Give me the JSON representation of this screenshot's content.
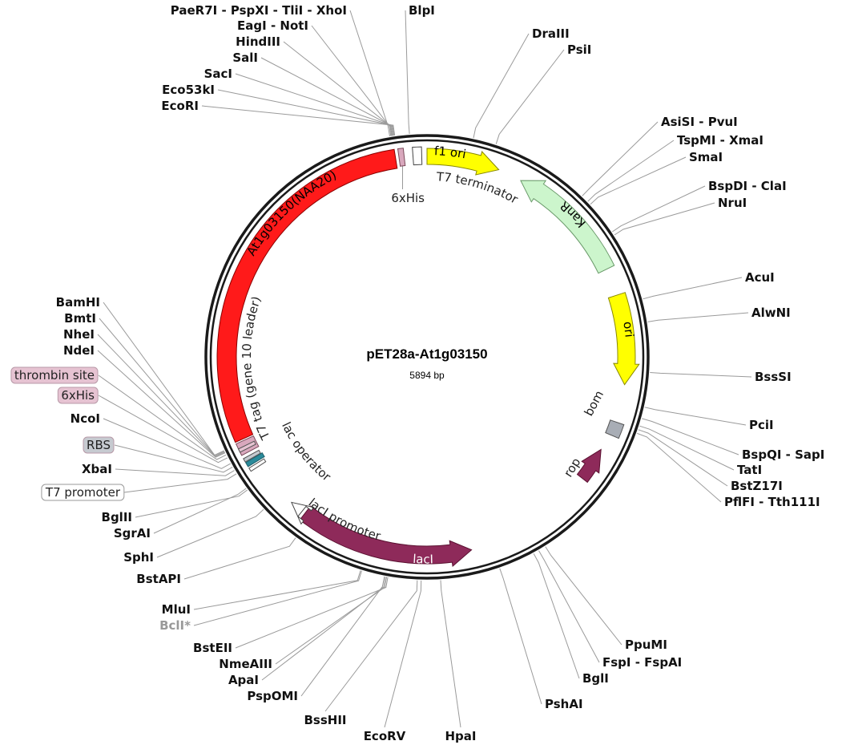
{
  "map": {
    "title": "pET28a-At1g03150",
    "length": "5894 bp"
  },
  "features": [
    {
      "id": "insert",
      "label": "At1g03150(NAA20)",
      "color": "#ff1a1a"
    },
    {
      "id": "his_top",
      "label": "6xHis",
      "color": "#d9a8bd"
    },
    {
      "id": "t7term",
      "label": "T7 terminator",
      "color": "#ffffff"
    },
    {
      "id": "f1ori",
      "label": "f1 ori",
      "color": "#ffff00"
    },
    {
      "id": "kanr",
      "label": "KanR",
      "color": "#ccf5cc"
    },
    {
      "id": "ori",
      "label": "ori",
      "color": "#ffff00"
    },
    {
      "id": "bom",
      "label": "bom",
      "color": "#a8adb5"
    },
    {
      "id": "rop",
      "label": "rop",
      "color": "#8e2a5a"
    },
    {
      "id": "laci",
      "label": "lacI",
      "color": "#8e2a5a"
    },
    {
      "id": "lacip",
      "label": "lacI promoter",
      "color": "#ffffff"
    },
    {
      "id": "lacop",
      "label": "lac operator",
      "color": "#2a8a9a"
    },
    {
      "id": "t7tag",
      "label": "T7 tag (gene 10 leader)",
      "color": "#d9a8bd"
    }
  ],
  "boxed_labels": [
    {
      "label": "thrombin site",
      "color": "#e6c3d2"
    },
    {
      "label": "6xHis",
      "color": "#e6c3d2"
    },
    {
      "label": "RBS",
      "color": "#c6cad0"
    },
    {
      "label": "T7 promoter",
      "color": "#ffffff"
    }
  ],
  "sites": [
    {
      "name": "PaeR7I - PspXI - TliI - XhoI"
    },
    {
      "name": "EagI - NotI"
    },
    {
      "name": "HindIII"
    },
    {
      "name": "SalI"
    },
    {
      "name": "SacI"
    },
    {
      "name": "Eco53kI"
    },
    {
      "name": "EcoRI"
    },
    {
      "name": "BlpI"
    },
    {
      "name": "DraIII"
    },
    {
      "name": "PsiI"
    },
    {
      "name": "AsiSI - PvuI"
    },
    {
      "name": "TspMI - XmaI"
    },
    {
      "name": "SmaI"
    },
    {
      "name": "BspDI - ClaI"
    },
    {
      "name": "NruI"
    },
    {
      "name": "AcuI"
    },
    {
      "name": "AlwNI"
    },
    {
      "name": "BssSI"
    },
    {
      "name": "PciI"
    },
    {
      "name": "BspQI - SapI"
    },
    {
      "name": "TatI"
    },
    {
      "name": "BstZ17I"
    },
    {
      "name": "PflFI - Tth111I"
    },
    {
      "name": "PpuMI"
    },
    {
      "name": "FspI - FspAI"
    },
    {
      "name": "BglI"
    },
    {
      "name": "PshAI"
    },
    {
      "name": "HpaI"
    },
    {
      "name": "EcoRV"
    },
    {
      "name": "BssHII"
    },
    {
      "name": "PspOMI"
    },
    {
      "name": "ApaI"
    },
    {
      "name": "NmeAIII"
    },
    {
      "name": "BstEII"
    },
    {
      "name": "BclI*",
      "muted": true
    },
    {
      "name": "MluI"
    },
    {
      "name": "BstAPI"
    },
    {
      "name": "SphI"
    },
    {
      "name": "SgrAI"
    },
    {
      "name": "BglII"
    },
    {
      "name": "XbaI"
    },
    {
      "name": "NcoI"
    },
    {
      "name": "NdeI"
    },
    {
      "name": "NheI"
    },
    {
      "name": "BmtI"
    },
    {
      "name": "BamHI"
    }
  ]
}
